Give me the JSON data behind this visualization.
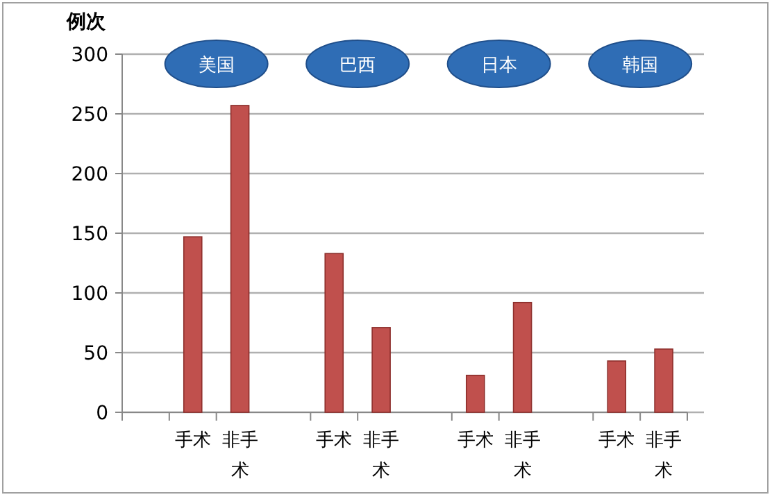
{
  "chart_data": {
    "type": "bar",
    "ylabel": "例次",
    "categories": [
      null,
      "手术",
      "非手术",
      null,
      "手术",
      "非手术",
      null,
      "手术",
      "非手术",
      null,
      "手术",
      "非手术"
    ],
    "values": [
      null,
      147,
      257,
      null,
      133,
      71,
      null,
      31,
      92,
      null,
      43,
      53
    ],
    "color": "#c0504d",
    "ylim": [
      0,
      300
    ],
    "yticks": [
      0,
      50,
      100,
      150,
      200,
      250,
      300
    ],
    "grid": "y",
    "annotations": [
      "美国",
      "巴西",
      "日本",
      "韩国"
    ]
  }
}
